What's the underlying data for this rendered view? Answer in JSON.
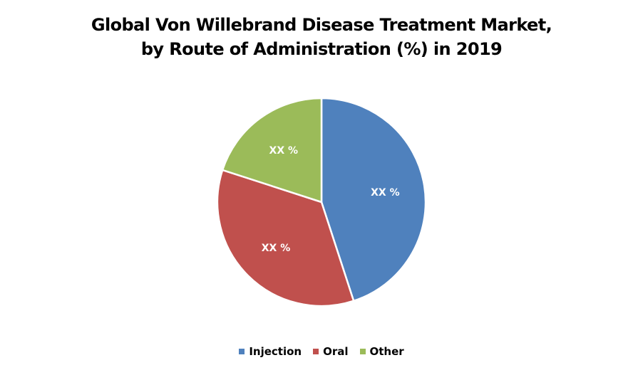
{
  "chart_data": {
    "type": "pie",
    "title": "Global Von Willebrand Disease Treatment Market, by Route of Administration (%) in 2019",
    "title_lines": [
      "Global Von Willebrand Disease Treatment Market,",
      "by Route of Administration (%) in 2019"
    ],
    "categories": [
      "Injection",
      "Oral",
      "Other"
    ],
    "values": [
      45,
      35,
      20
    ],
    "data_labels": [
      "XX %",
      "XX %",
      "XX %"
    ],
    "colors": [
      "#4F81BD",
      "#C0504D",
      "#9BBB59"
    ],
    "start_angle": "12 o'clock, clockwise",
    "legend_position": "bottom"
  }
}
